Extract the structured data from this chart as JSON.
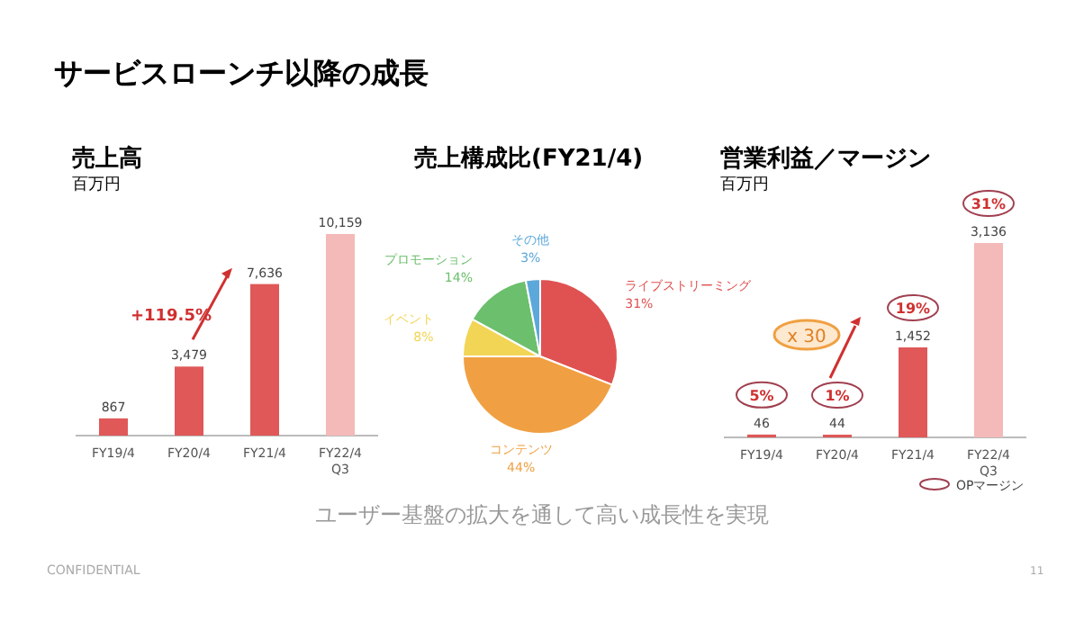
{
  "chart_data": [
    {
      "type": "bar",
      "title": "売上高",
      "subtitle": "百万円",
      "categories": [
        "FY19/4",
        "FY20/4",
        "FY21/4",
        "FY22/4 Q3"
      ],
      "values": [
        867,
        3479,
        7636,
        10159
      ],
      "value_labels": [
        "867",
        "3,479",
        "7,636",
        "10,159"
      ],
      "colors": [
        "#e05858",
        "#e05858",
        "#e05858",
        "#f4b9b9"
      ],
      "annotations": [
        "+119.5%"
      ]
    },
    {
      "type": "pie",
      "title": "売上構成比(FY21/4)",
      "categories": [
        "ライブストリーミング",
        "コンテンツ",
        "イベント",
        "プロモーション",
        "その他"
      ],
      "values": [
        31,
        44,
        8,
        14,
        3
      ],
      "value_labels": [
        "31%",
        "44%",
        "8%",
        "14%",
        "3%"
      ],
      "colors": [
        "#e05252",
        "#f0a042",
        "#f2d555",
        "#6cbf6c",
        "#5ca8da"
      ]
    },
    {
      "type": "bar",
      "title": "営業利益／マージン",
      "subtitle": "百万円",
      "categories": [
        "FY19/4",
        "FY20/4",
        "FY21/4",
        "FY22/4 Q3"
      ],
      "values": [
        46,
        44,
        1452,
        3136
      ],
      "value_labels": [
        "46",
        "44",
        "1,452",
        "3,136"
      ],
      "colors": [
        "#e05858",
        "#e05858",
        "#e05858",
        "#f4b9b9"
      ],
      "annotations": [
        "5%",
        "1%",
        "19%",
        "31%",
        "x 30",
        "OPマージン"
      ]
    },
    {
      "type": "other",
      "title": "サービスローンチ以降の成長",
      "annotations": [
        "ユーザー基盤の拡大を通して高い成長性を実現",
        "CONFIDENTIAL",
        "11"
      ]
    }
  ]
}
